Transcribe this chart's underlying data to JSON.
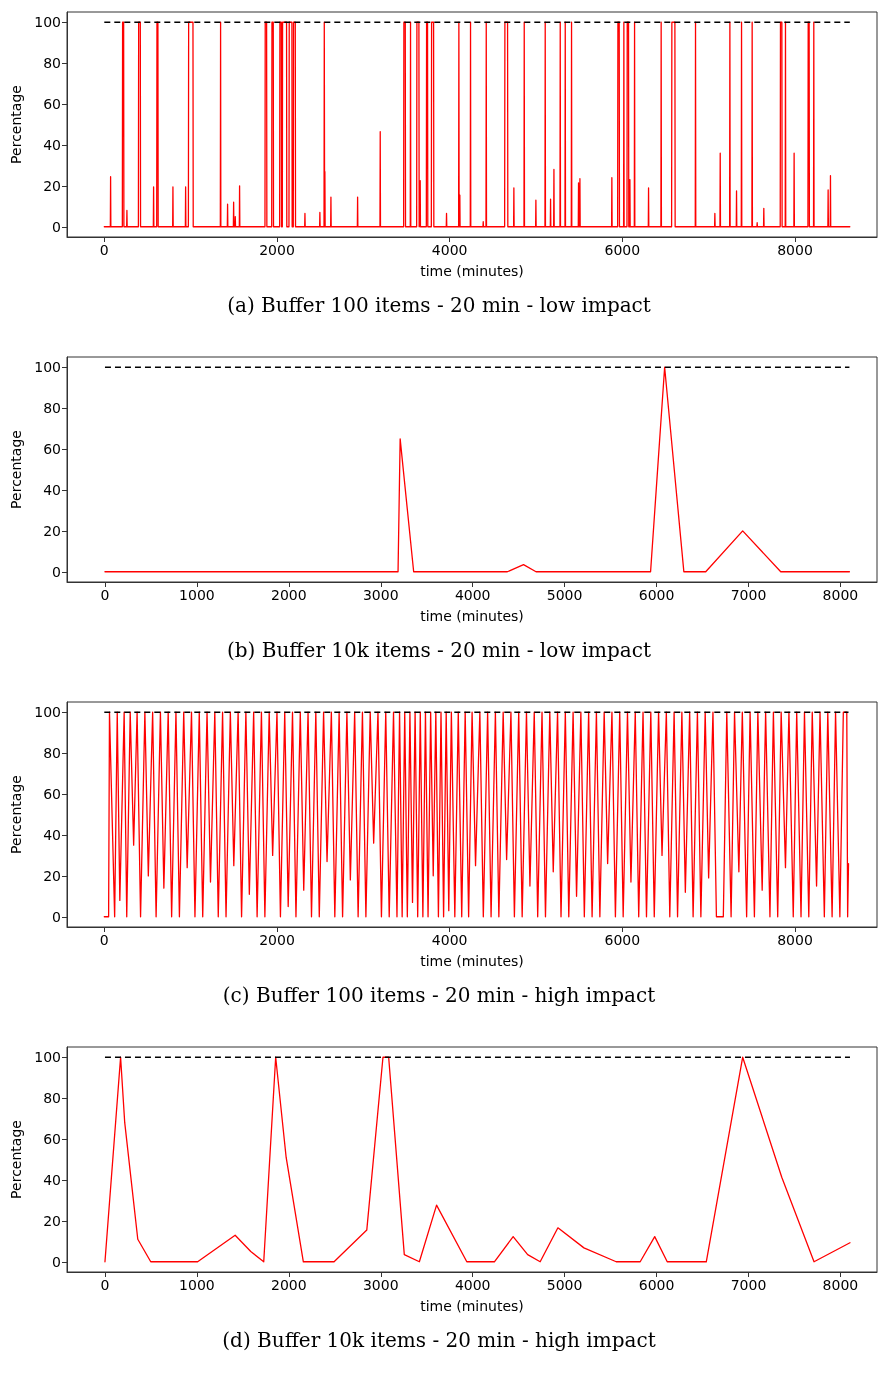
{
  "chart_data": [
    {
      "type": "line",
      "title": "(a) Buffer 100 items - 20 min - low impact",
      "xlabel": "time (minutes)",
      "ylabel": "Percentage",
      "color": "#ff0000",
      "marker": "none",
      "grid": false,
      "x": [
        0,
        70,
        73,
        76,
        209,
        212,
        224,
        227,
        259,
        262,
        265,
        395,
        398,
        417,
        420,
        568,
        571,
        574,
        607,
        610,
        621,
        624,
        792,
        795,
        798,
        939,
        942,
        945,
        974,
        977,
        1027,
        1030,
        1344,
        1347,
        1350,
        1425,
        1428,
        1431,
        1495,
        1498,
        1501,
        1514,
        1517,
        1520,
        1564,
        1567,
        1570,
        1861,
        1864,
        1880,
        1883,
        1939,
        1942,
        1957,
        1960,
        2031,
        2034,
        2050,
        2053,
        2062,
        2065,
        2111,
        2114,
        2139,
        2142,
        2173,
        2176,
        2189,
        2192,
        2212,
        2215,
        2321,
        2324,
        2327,
        2494,
        2497,
        2500,
        2545,
        2548,
        2552,
        2555,
        2558,
        2622,
        2625,
        2628,
        2931,
        2934,
        2937,
        3193,
        3196,
        3199,
        3467,
        3470,
        3486,
        3489,
        3544,
        3547,
        3550,
        3618,
        3621,
        3644,
        3647,
        3659,
        3662,
        3730,
        3733,
        3744,
        3747,
        3788,
        3791,
        3814,
        3817,
        3961,
        3964,
        3967,
        4104,
        4107,
        4110,
        4118,
        4121,
        4239,
        4242,
        4245,
        4386,
        4389,
        4392,
        4421,
        4424,
        4427,
        4637,
        4640,
        4671,
        4674,
        4741,
        4744,
        4747,
        4861,
        4864,
        4867,
        4996,
        4999,
        5002,
        5104,
        5107,
        5110,
        5166,
        5169,
        5172,
        5205,
        5208,
        5211,
        5278,
        5281,
        5284,
        5336,
        5339,
        5342,
        5409,
        5412,
        5415,
        5490,
        5493,
        5496,
        5506,
        5509,
        5512,
        5876,
        5879,
        5882,
        5946,
        5949,
        5964,
        5967,
        6015,
        6018,
        6021,
        6054,
        6057,
        6072,
        6075,
        6085,
        6088,
        6091,
        6139,
        6142,
        6145,
        6301,
        6304,
        6307,
        6447,
        6450,
        6453,
        6571,
        6574,
        6609,
        6612,
        6845,
        6848,
        6851,
        7069,
        7072,
        7075,
        7131,
        7134,
        7137,
        7243,
        7246,
        7249,
        7320,
        7323,
        7326,
        7378,
        7381,
        7384,
        7501,
        7504,
        7507,
        7559,
        7562,
        7565,
        7636,
        7639,
        7642,
        7829,
        7832,
        7848,
        7851,
        7887,
        7890,
        7893,
        7987,
        7990,
        7993,
        8150,
        8153,
        8164,
        8167,
        8215,
        8218,
        8221,
        8381,
        8384,
        8387,
        8408,
        8411,
        8414,
        8635
      ],
      "values": [
        0,
        0,
        24.5,
        0,
        0,
        100,
        100,
        0,
        0,
        8,
        0,
        0,
        100,
        100,
        0,
        0,
        19.5,
        0,
        0,
        100,
        100,
        0,
        0,
        19.5,
        0,
        0,
        19.5,
        0,
        0,
        100,
        100,
        0,
        0,
        100,
        0,
        0,
        11,
        0,
        0,
        12,
        0,
        0,
        5,
        0,
        0,
        20,
        0,
        0,
        100,
        100,
        0,
        0,
        100,
        100,
        0,
        0,
        100,
        100,
        0,
        0,
        100,
        100,
        0,
        0,
        100,
        100,
        0,
        0,
        100,
        100,
        0,
        0,
        6.5,
        0,
        0,
        7,
        0,
        0,
        100,
        0,
        27,
        0,
        0,
        14.5,
        0,
        0,
        14.5,
        0,
        0,
        46.5,
        0,
        0,
        100,
        100,
        0,
        0,
        100,
        0,
        0,
        100,
        100,
        0,
        22.5,
        0,
        0,
        100,
        100,
        0,
        0,
        100,
        100,
        0,
        0,
        6.5,
        0,
        0,
        100,
        0,
        15.5,
        0,
        0,
        100,
        0,
        0,
        2.5,
        0,
        0,
        100,
        0,
        0,
        100,
        100,
        0,
        0,
        19,
        0,
        0,
        100,
        0,
        0,
        13,
        0,
        0,
        100,
        0,
        0,
        13.5,
        0,
        0,
        28,
        0,
        0,
        100,
        0,
        0,
        100,
        0,
        0,
        100,
        0,
        0,
        21.5,
        0,
        0,
        23.5,
        0,
        0,
        24,
        0,
        0,
        100,
        100,
        0,
        0,
        100,
        0,
        0,
        100,
        100,
        0,
        0,
        23,
        0,
        0,
        100,
        0,
        0,
        19,
        0,
        0,
        100,
        0,
        0,
        100,
        100,
        0,
        0,
        100,
        0,
        0,
        6.5,
        0,
        0,
        36,
        0,
        0,
        100,
        0,
        0,
        17.5,
        0,
        0,
        100,
        0,
        0,
        100,
        0,
        0,
        2,
        0,
        0,
        9,
        0,
        0,
        100,
        100,
        0,
        0,
        100,
        0,
        0,
        36,
        0,
        0,
        100,
        100,
        0,
        0,
        100,
        0,
        0,
        18,
        0,
        0,
        25,
        0,
        0
      ],
      "xlim": [
        -432,
        8950
      ],
      "ylim": [
        -5,
        105
      ],
      "xticks": [
        0,
        2000,
        4000,
        6000,
        8000
      ],
      "yticks": [
        0,
        20,
        40,
        60,
        80,
        100
      ],
      "ref_lines": [
        {
          "axis": "y",
          "value": 100,
          "color": "#000000",
          "line_style": "dashed"
        }
      ]
    },
    {
      "type": "line",
      "title": "(b) Buffer 10k items - 20 min - low impact",
      "xlabel": "time (minutes)",
      "ylabel": "Percentage",
      "color": "#ff0000",
      "marker": "none",
      "grid": false,
      "x": [
        0,
        3188,
        3211,
        3358,
        4377,
        4553,
        4689,
        5935,
        6088,
        6297,
        6535,
        6937,
        7351,
        8098
      ],
      "values": [
        0,
        0,
        65,
        0,
        0,
        3.5,
        0,
        0,
        100,
        0,
        0,
        20,
        0,
        0
      ],
      "xlim": [
        -413,
        8398
      ],
      "ylim": [
        -5,
        105
      ],
      "xticks": [
        0,
        1000,
        2000,
        3000,
        4000,
        5000,
        6000,
        7000,
        8000
      ],
      "yticks": [
        0,
        20,
        40,
        60,
        80,
        100
      ],
      "ref_lines": [
        {
          "axis": "y",
          "value": 100,
          "color": "#000000",
          "line_style": "dashed"
        }
      ]
    },
    {
      "type": "line",
      "title": "(c) Buffer 100 items - 20 min - high impact",
      "xlabel": "time (minutes)",
      "ylabel": "Percentage",
      "color": "#ff0000",
      "marker": "none",
      "grid": false,
      "x": [
        0,
        50,
        60,
        120,
        150,
        180,
        230,
        260,
        300,
        340,
        380,
        420,
        470,
        510,
        560,
        600,
        650,
        690,
        740,
        780,
        830,
        870,
        920,
        960,
        1010,
        1050,
        1100,
        1140,
        1190,
        1230,
        1280,
        1320,
        1370,
        1410,
        1460,
        1500,
        1550,
        1590,
        1640,
        1680,
        1730,
        1770,
        1820,
        1860,
        1910,
        1950,
        2000,
        2040,
        2090,
        2130,
        2180,
        2220,
        2270,
        2310,
        2360,
        2400,
        2450,
        2490,
        2540,
        2580,
        2630,
        2670,
        2720,
        2760,
        2810,
        2850,
        2900,
        2940,
        2990,
        3030,
        3080,
        3120,
        3170,
        3210,
        3260,
        3300,
        3350,
        3390,
        3420,
        3450,
        3480,
        3510,
        3540,
        3570,
        3600,
        3630,
        3660,
        3690,
        3720,
        3750,
        3780,
        3810,
        3840,
        3870,
        3900,
        3930,
        3960,
        3990,
        4020,
        4060,
        4100,
        4140,
        4180,
        4220,
        4260,
        4300,
        4350,
        4390,
        4440,
        4480,
        4530,
        4570,
        4620,
        4660,
        4710,
        4750,
        4800,
        4840,
        4890,
        4930,
        4980,
        5020,
        5070,
        5110,
        5160,
        5200,
        5250,
        5290,
        5340,
        5380,
        5430,
        5470,
        5520,
        5560,
        5610,
        5650,
        5700,
        5740,
        5790,
        5830,
        5880,
        5920,
        5970,
        6010,
        6060,
        6100,
        6150,
        6190,
        6240,
        6280,
        6330,
        6370,
        6420,
        6460,
        6510,
        6550,
        6600,
        6640,
        6690,
        6730,
        6780,
        6820,
        6870,
        6910,
        6960,
        7000,
        7050,
        7090,
        7170,
        7210,
        7260,
        7300,
        7350,
        7390,
        7440,
        7480,
        7530,
        7570,
        7620,
        7660,
        7710,
        7750,
        7800,
        7840,
        7890,
        7930,
        7980,
        8020,
        8070,
        8110,
        8160,
        8200,
        8250,
        8290,
        8340,
        8380,
        8430,
        8470,
        8520,
        8560,
        8600,
        8610,
        8620
      ],
      "values": [
        0,
        0,
        100,
        0,
        100,
        8,
        100,
        0,
        100,
        35,
        100,
        0,
        100,
        20,
        100,
        0,
        100,
        14,
        100,
        0,
        100,
        0,
        100,
        24,
        100,
        0,
        100,
        0,
        100,
        17,
        100,
        0,
        100,
        0,
        100,
        25,
        100,
        0,
        100,
        11,
        100,
        0,
        100,
        0,
        100,
        30,
        100,
        0,
        100,
        5,
        100,
        0,
        100,
        13,
        100,
        0,
        100,
        0,
        100,
        27,
        100,
        0,
        100,
        0,
        100,
        18,
        100,
        0,
        100,
        0,
        100,
        36,
        100,
        0,
        100,
        0,
        100,
        0,
        100,
        0,
        100,
        0,
        100,
        7,
        100,
        0,
        100,
        0,
        100,
        0,
        100,
        20,
        100,
        0,
        100,
        0,
        100,
        3,
        100,
        0,
        100,
        0,
        100,
        0,
        100,
        25,
        100,
        0,
        100,
        0,
        100,
        0,
        100,
        28,
        100,
        0,
        100,
        0,
        100,
        15,
        100,
        0,
        100,
        0,
        100,
        22,
        100,
        0,
        100,
        0,
        100,
        10,
        100,
        0,
        100,
        0,
        100,
        0,
        100,
        26,
        100,
        0,
        100,
        0,
        100,
        17,
        100,
        0,
        100,
        0,
        100,
        0,
        100,
        30,
        100,
        0,
        100,
        0,
        100,
        12,
        100,
        0,
        100,
        0,
        100,
        19,
        100,
        0,
        0,
        100,
        0,
        100,
        22,
        100,
        0,
        100,
        0,
        100,
        13,
        100,
        0,
        100,
        0,
        100,
        24,
        100,
        0,
        100,
        0,
        100,
        0,
        100,
        15,
        100,
        0,
        100,
        0,
        100,
        0,
        100,
        100,
        0,
        26
      ],
      "xlim": [
        -432,
        8950
      ],
      "ylim": [
        -5,
        105
      ],
      "xticks": [
        0,
        2000,
        4000,
        6000,
        8000
      ],
      "yticks": [
        0,
        20,
        40,
        60,
        80,
        100
      ],
      "ref_lines": [
        {
          "axis": "y",
          "value": 100,
          "color": "#000000",
          "line_style": "dashed"
        }
      ]
    },
    {
      "type": "line",
      "title": "(d) Buffer 10k items - 20 min - high impact",
      "xlabel": "time (minutes)",
      "ylabel": "Percentage",
      "color": "#ff0000",
      "marker": "none",
      "grid": false,
      "x": [
        0,
        170,
        215,
        357,
        498,
        1008,
        1416,
        1586,
        1727,
        1857,
        1971,
        2158,
        2492,
        2848,
        3024,
        3086,
        3256,
        3420,
        3607,
        3936,
        4236,
        4440,
        4598,
        4734,
        4927,
        5210,
        5561,
        5822,
        5980,
        6116,
        6541,
        6937,
        7362,
        7713,
        8104
      ],
      "values": [
        0,
        100,
        68,
        11,
        0,
        0,
        13,
        5,
        0,
        100,
        51,
        0,
        0,
        15.5,
        100,
        100,
        3.5,
        0,
        27.7,
        0,
        0,
        12.3,
        3.5,
        0,
        16.6,
        6.8,
        0,
        0,
        12.3,
        0,
        0,
        100,
        41.3,
        0,
        9.3
      ],
      "xlim": [
        -413,
        8398
      ],
      "ylim": [
        -5,
        105
      ],
      "xticks": [
        0,
        1000,
        2000,
        3000,
        4000,
        5000,
        6000,
        7000,
        8000
      ],
      "yticks": [
        0,
        20,
        40,
        60,
        80,
        100
      ],
      "ref_lines": [
        {
          "axis": "y",
          "value": 100,
          "color": "#000000",
          "line_style": "dashed"
        }
      ]
    }
  ]
}
